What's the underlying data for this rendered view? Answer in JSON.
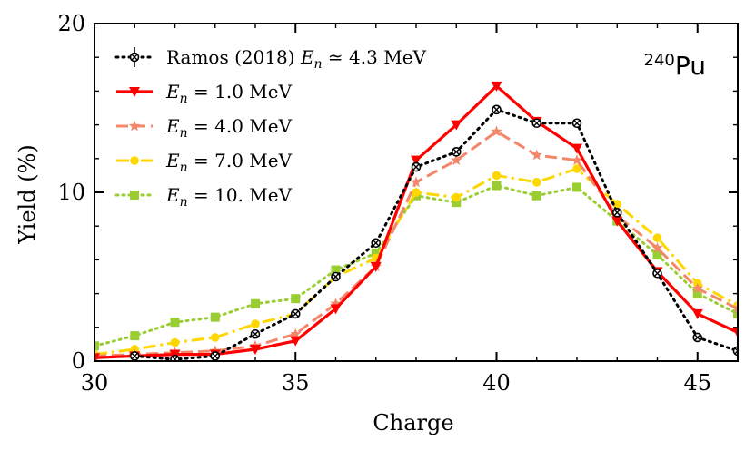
{
  "chart_data": {
    "type": "line",
    "title": "",
    "xlabel": "Charge",
    "ylabel": "Yield (%)",
    "xlim": [
      30,
      46
    ],
    "ylim": [
      0,
      20
    ],
    "x_ticks": [
      30,
      35,
      40,
      45
    ],
    "y_ticks": [
      0,
      10,
      20
    ],
    "annotation": {
      "superscript": "240",
      "element": "Pu"
    },
    "legend_position": "upper-left",
    "series": [
      {
        "name": "Ramos (2018) E_n ≃ 4.3 MeV",
        "legend_parts": [
          "Ramos (2018) ",
          "E",
          "n",
          " ≃ 4.3 MeV"
        ],
        "color": "#000000",
        "linestyle": "dotted",
        "marker": "crossed-circle",
        "x": [
          31,
          32,
          33,
          34,
          35,
          36,
          37,
          38,
          39,
          40,
          41,
          42,
          43,
          44,
          45,
          46
        ],
        "y": [
          0.3,
          0.1,
          0.3,
          1.6,
          2.8,
          5.0,
          7.0,
          11.5,
          12.4,
          14.9,
          14.1,
          14.1,
          8.8,
          5.2,
          1.4,
          0.6
        ]
      },
      {
        "name": "E_n = 1.0 MeV",
        "legend_parts": [
          "",
          "E",
          "n",
          " = 1.0 MeV"
        ],
        "color": "#ff0000",
        "linestyle": "solid",
        "marker": "triangle-down",
        "x": [
          30,
          31,
          32,
          33,
          34,
          35,
          36,
          37,
          38,
          39,
          40,
          41,
          42,
          43,
          44,
          45,
          46
        ],
        "y": [
          0.2,
          0.3,
          0.4,
          0.4,
          0.7,
          1.2,
          3.1,
          5.6,
          11.9,
          14.0,
          16.3,
          14.2,
          12.6,
          8.3,
          5.3,
          2.8,
          1.7
        ]
      },
      {
        "name": "E_n = 4.0 MeV",
        "legend_parts": [
          "",
          "E",
          "n",
          " = 4.0 MeV"
        ],
        "color": "#f4876a",
        "linestyle": "dashed",
        "marker": "star",
        "x": [
          30,
          31,
          32,
          33,
          34,
          35,
          36,
          37,
          38,
          39,
          40,
          41,
          42,
          43,
          44,
          45,
          46
        ],
        "y": [
          0.3,
          0.4,
          0.5,
          0.6,
          0.9,
          1.6,
          3.4,
          5.6,
          10.6,
          11.9,
          13.6,
          12.2,
          11.9,
          8.6,
          6.7,
          4.3,
          3.1
        ]
      },
      {
        "name": "E_n = 7.0 MeV",
        "legend_parts": [
          "",
          "E",
          "n",
          " = 7.0 MeV"
        ],
        "color": "#ffd700",
        "linestyle": "dashdot",
        "marker": "circle",
        "x": [
          30,
          31,
          32,
          33,
          34,
          35,
          36,
          37,
          38,
          39,
          40,
          41,
          42,
          43,
          44,
          45,
          46
        ],
        "y": [
          0.4,
          0.7,
          1.1,
          1.4,
          2.2,
          2.8,
          5.0,
          6.1,
          10.0,
          9.7,
          11.0,
          10.6,
          11.4,
          9.3,
          7.3,
          4.6,
          3.3
        ]
      },
      {
        "name": "E_n = 10. MeV",
        "legend_parts": [
          "",
          "E",
          "n",
          " = 10. MeV"
        ],
        "color": "#9acd32",
        "linestyle": "dotted",
        "marker": "square",
        "x": [
          30,
          31,
          32,
          33,
          34,
          35,
          36,
          37,
          38,
          39,
          40,
          41,
          42,
          43,
          44,
          45,
          46
        ],
        "y": [
          0.9,
          1.5,
          2.3,
          2.6,
          3.4,
          3.7,
          5.4,
          6.4,
          9.8,
          9.4,
          10.4,
          9.8,
          10.3,
          8.3,
          6.3,
          4.0,
          2.8
        ]
      }
    ]
  }
}
